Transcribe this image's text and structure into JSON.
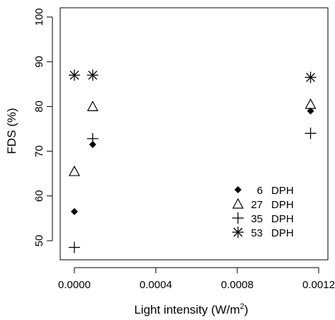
{
  "chart_data": {
    "type": "scatter",
    "title": "",
    "xlabel": "Light intensity (W/m",
    "xlabel_sup": "2",
    "xlabel_end": ")",
    "ylabel": "FDS (%)",
    "xlim": [
      -7e-05,
      0.00122
    ],
    "ylim": [
      43,
      102
    ],
    "x_ticks": [
      {
        "value": 0.0,
        "label": "0.0000"
      },
      {
        "value": 0.0004,
        "label": "0.0004"
      },
      {
        "value": 0.0008,
        "label": "0.0008"
      },
      {
        "value": 0.0012,
        "label": "0.0012"
      }
    ],
    "y_ticks": [
      {
        "value": 50,
        "label": "50"
      },
      {
        "value": 60,
        "label": "60"
      },
      {
        "value": 70,
        "label": "70"
      },
      {
        "value": 80,
        "label": "80"
      },
      {
        "value": 90,
        "label": "90"
      },
      {
        "value": 100,
        "label": "100"
      }
    ],
    "legend_position": "right-middle",
    "series": [
      {
        "name": "6",
        "unit": "DPH",
        "marker": "diamond",
        "x": [
          0.0,
          9e-05,
          0.00116
        ],
        "y": [
          56.5,
          71.5,
          79.0
        ]
      },
      {
        "name": "27",
        "unit": "DPH",
        "marker": "triangle",
        "x": [
          0.0,
          9e-05,
          0.00116
        ],
        "y": [
          65.5,
          80.0,
          80.5
        ]
      },
      {
        "name": "35",
        "unit": "DPH",
        "marker": "plus",
        "x": [
          0.0,
          9e-05,
          0.00116
        ],
        "y": [
          48.5,
          72.8,
          74.0
        ]
      },
      {
        "name": "53",
        "unit": "DPH",
        "marker": "asterisk",
        "x": [
          0.0,
          9e-05,
          0.00116
        ],
        "y": [
          87.0,
          87.0,
          86.5
        ]
      }
    ]
  }
}
